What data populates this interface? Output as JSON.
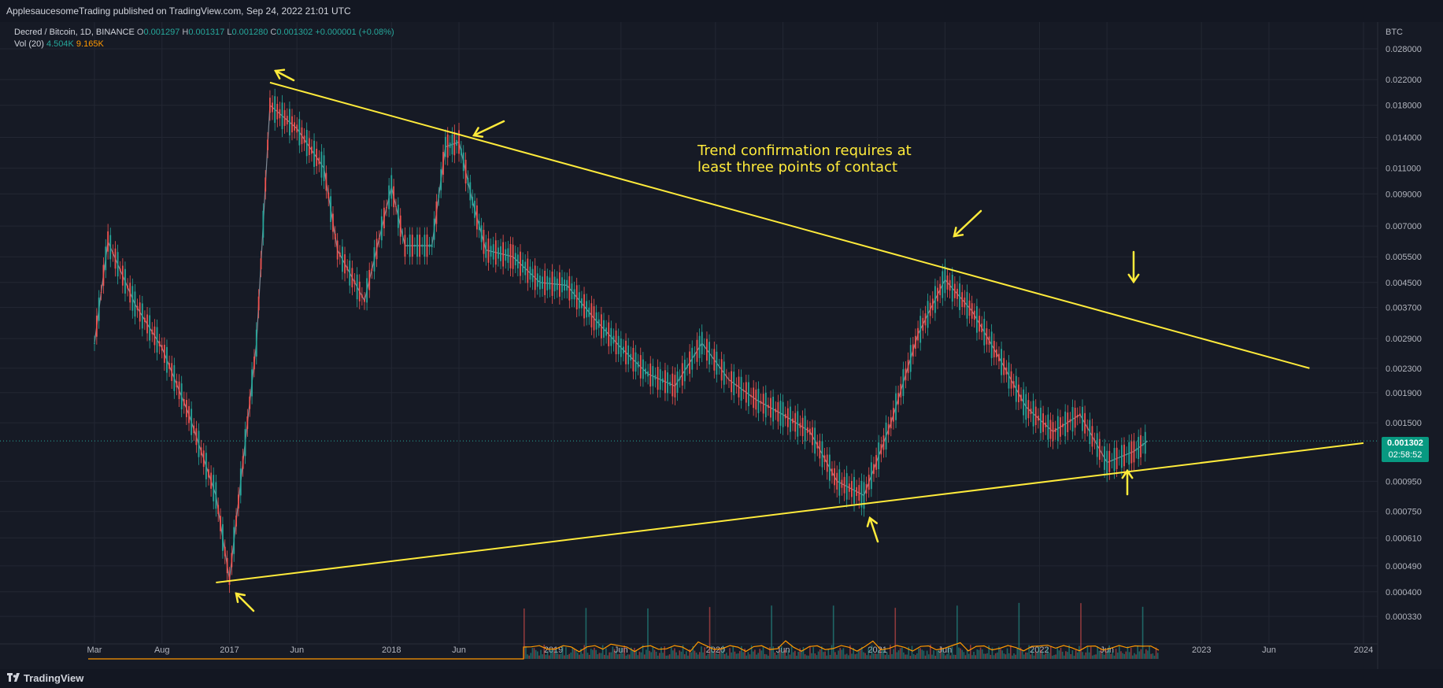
{
  "header": {
    "published_by": "ApplesaucesomeTrading published on TradingView.com, Sep 24, 2022 21:01 UTC"
  },
  "legend": {
    "symbol": "Decred / Bitcoin, 1D, BINANCE",
    "o_label": "O",
    "o_value": "0.001297",
    "h_label": "H",
    "h_value": "0.001317",
    "l_label": "L",
    "l_value": "0.001280",
    "c_label": "C",
    "c_value": "0.001302",
    "change": "+0.000001 (+0.08%)",
    "vol_label": "Vol (20)",
    "vol_value1": "4.504K",
    "vol_value2": "9.165K"
  },
  "annotation": {
    "line1": "Trend confirmation requires at",
    "line2": "least three points of contact"
  },
  "price_tag": {
    "price": "0.001302",
    "countdown": "02:58:52"
  },
  "footer": {
    "brand": "TradingView"
  },
  "colors": {
    "background": "#161a25",
    "up": "#26a69a",
    "down": "#ef5350",
    "trendline": "#ffeb3b",
    "volume_ma": "#ff9800"
  },
  "chart_data": {
    "type": "line",
    "title": "Decred / Bitcoin, 1D, BINANCE",
    "y_scale": "log",
    "y_unit": "BTC",
    "y_ticks": [
      "0.028000",
      "0.022000",
      "0.018000",
      "0.014000",
      "0.011000",
      "0.009000",
      "0.007000",
      "0.005500",
      "0.004500",
      "0.003700",
      "0.002900",
      "0.002300",
      "0.001900",
      "0.001500",
      "0.000950",
      "0.000750",
      "0.000610",
      "0.000490",
      "0.000400",
      "0.000330"
    ],
    "x_ticks": [
      "Mar",
      "Aug",
      "2017",
      "Jun",
      "2018",
      "Jun",
      "2019",
      "Jun",
      "2020",
      "Jun",
      "2021",
      "Jun",
      "2022",
      "Jun",
      "2023",
      "Jun",
      "2024"
    ],
    "x": [
      "2016-03",
      "2016-04",
      "2016-06",
      "2016-08",
      "2016-10",
      "2016-12",
      "2017-01",
      "2017-02",
      "2017-03",
      "2017-04",
      "2017-06",
      "2017-08",
      "2017-09",
      "2017-11",
      "2018-01",
      "2018-02",
      "2018-04",
      "2018-05",
      "2018-06",
      "2018-07",
      "2018-08",
      "2018-10",
      "2018-12",
      "2019-02",
      "2019-04",
      "2019-06",
      "2019-08",
      "2019-10",
      "2019-12",
      "2020-02",
      "2020-04",
      "2020-06",
      "2020-08",
      "2020-10",
      "2020-12",
      "2021-02",
      "2021-04",
      "2021-06",
      "2021-08",
      "2021-10",
      "2021-12",
      "2022-02",
      "2022-04",
      "2022-06",
      "2022-08",
      "2022-09"
    ],
    "series": [
      {
        "values": [
          0.0028,
          0.0062,
          0.0038,
          0.0027,
          0.0016,
          0.00085,
          0.00044,
          0.0011,
          0.0028,
          0.018,
          0.015,
          0.011,
          0.0058,
          0.0039,
          0.0095,
          0.006,
          0.006,
          0.013,
          0.0135,
          0.0085,
          0.0058,
          0.0055,
          0.0045,
          0.0044,
          0.0034,
          0.0027,
          0.0022,
          0.002,
          0.0028,
          0.0021,
          0.0018,
          0.0016,
          0.0014,
          0.00095,
          0.00085,
          0.0015,
          0.003,
          0.0046,
          0.0036,
          0.0025,
          0.0017,
          0.0014,
          0.0016,
          0.0011,
          0.0012,
          0.0013
        ]
      }
    ],
    "trendlines": [
      {
        "from": [
          "2017-04",
          0.0215
        ],
        "to": [
          "2023-09",
          0.0023
        ]
      },
      {
        "from": [
          "2016-12",
          0.00043
        ],
        "to": [
          "2024-01",
          0.00128
        ]
      }
    ],
    "current_price": 0.001302,
    "grid": true
  }
}
